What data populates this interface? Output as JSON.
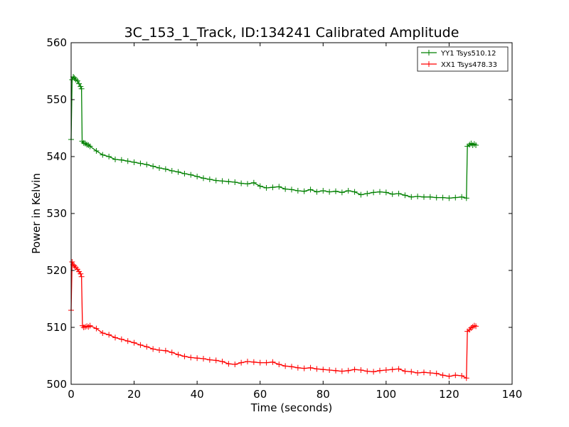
{
  "chart_data": {
    "type": "line",
    "title": "3C_153_1_Track, ID:134241 Calibrated Amplitude",
    "xlabel": "Time (seconds)",
    "ylabel": "Power in Kelvin",
    "xlim": [
      0,
      140
    ],
    "ylim": [
      500,
      560
    ],
    "xticks": [
      0,
      20,
      40,
      60,
      80,
      100,
      120,
      140
    ],
    "yticks": [
      500,
      510,
      520,
      530,
      540,
      550,
      560
    ],
    "grid": false,
    "legend_position": "top-right",
    "marker": "+",
    "series": [
      {
        "name": "YY1 Tsys510.12",
        "color": "#008000",
        "points": [
          [
            0.0,
            543.0
          ],
          [
            0.3,
            553.5
          ],
          [
            0.7,
            554.0
          ],
          [
            1.0,
            553.8
          ],
          [
            1.5,
            553.5
          ],
          [
            2.0,
            553.3
          ],
          [
            2.5,
            552.8
          ],
          [
            3.0,
            552.3
          ],
          [
            3.3,
            551.9
          ],
          [
            3.5,
            542.7
          ],
          [
            4.0,
            542.4
          ],
          [
            4.5,
            542.3
          ],
          [
            5.0,
            542.1
          ],
          [
            5.5,
            542.0
          ],
          [
            6.0,
            541.8
          ],
          [
            8,
            541.0
          ],
          [
            10,
            540.3
          ],
          [
            12,
            540.0
          ],
          [
            14,
            539.5
          ],
          [
            16,
            539.4
          ],
          [
            18,
            539.2
          ],
          [
            20,
            539.0
          ],
          [
            22,
            538.8
          ],
          [
            24,
            538.6
          ],
          [
            26,
            538.3
          ],
          [
            28,
            538.0
          ],
          [
            30,
            537.8
          ],
          [
            32,
            537.5
          ],
          [
            34,
            537.3
          ],
          [
            36,
            537.0
          ],
          [
            38,
            536.8
          ],
          [
            40,
            536.5
          ],
          [
            42,
            536.2
          ],
          [
            44,
            536.0
          ],
          [
            46,
            535.8
          ],
          [
            48,
            535.7
          ],
          [
            50,
            535.6
          ],
          [
            52,
            535.5
          ],
          [
            54,
            535.3
          ],
          [
            56,
            535.2
          ],
          [
            58,
            535.4
          ],
          [
            60,
            534.8
          ],
          [
            62,
            534.5
          ],
          [
            64,
            534.6
          ],
          [
            66,
            534.7
          ],
          [
            68,
            534.3
          ],
          [
            70,
            534.2
          ],
          [
            72,
            534.0
          ],
          [
            74,
            533.9
          ],
          [
            76,
            534.2
          ],
          [
            78,
            533.8
          ],
          [
            80,
            534.0
          ],
          [
            82,
            533.8
          ],
          [
            84,
            533.9
          ],
          [
            86,
            533.7
          ],
          [
            88,
            534.0
          ],
          [
            90,
            533.8
          ],
          [
            92,
            533.3
          ],
          [
            94,
            533.5
          ],
          [
            96,
            533.7
          ],
          [
            98,
            533.8
          ],
          [
            100,
            533.7
          ],
          [
            102,
            533.4
          ],
          [
            104,
            533.5
          ],
          [
            106,
            533.2
          ],
          [
            108,
            532.9
          ],
          [
            110,
            533.0
          ],
          [
            112,
            532.9
          ],
          [
            114,
            532.9
          ],
          [
            116,
            532.8
          ],
          [
            118,
            532.8
          ],
          [
            120,
            532.7
          ],
          [
            122,
            532.8
          ],
          [
            124,
            532.9
          ],
          [
            125.5,
            532.7
          ],
          [
            125.8,
            541.8
          ],
          [
            126.5,
            542.1
          ],
          [
            127.0,
            542.3
          ],
          [
            127.5,
            542.0
          ],
          [
            128.0,
            542.2
          ],
          [
            128.5,
            542.0
          ]
        ]
      },
      {
        "name": "XX1 Tsys478.33",
        "color": "#ff0000",
        "points": [
          [
            0.0,
            513.0
          ],
          [
            0.3,
            521.5
          ],
          [
            0.7,
            521.0
          ],
          [
            1.0,
            520.8
          ],
          [
            1.5,
            520.5
          ],
          [
            2.0,
            520.2
          ],
          [
            2.5,
            519.8
          ],
          [
            3.0,
            519.4
          ],
          [
            3.3,
            518.9
          ],
          [
            3.6,
            510.3
          ],
          [
            4.0,
            510.0
          ],
          [
            4.5,
            510.1
          ],
          [
            5.0,
            510.2
          ],
          [
            5.5,
            510.1
          ],
          [
            6.0,
            510.3
          ],
          [
            8,
            509.8
          ],
          [
            10,
            509.0
          ],
          [
            12,
            508.7
          ],
          [
            14,
            508.2
          ],
          [
            16,
            507.9
          ],
          [
            18,
            507.6
          ],
          [
            20,
            507.3
          ],
          [
            22,
            506.9
          ],
          [
            24,
            506.6
          ],
          [
            26,
            506.2
          ],
          [
            28,
            506.0
          ],
          [
            30,
            505.9
          ],
          [
            32,
            505.6
          ],
          [
            34,
            505.2
          ],
          [
            36,
            504.9
          ],
          [
            38,
            504.7
          ],
          [
            40,
            504.6
          ],
          [
            42,
            504.5
          ],
          [
            44,
            504.3
          ],
          [
            46,
            504.2
          ],
          [
            48,
            504.0
          ],
          [
            50,
            503.6
          ],
          [
            52,
            503.5
          ],
          [
            54,
            503.8
          ],
          [
            56,
            504.0
          ],
          [
            58,
            503.9
          ],
          [
            60,
            503.8
          ],
          [
            62,
            503.8
          ],
          [
            64,
            503.9
          ],
          [
            66,
            503.5
          ],
          [
            68,
            503.2
          ],
          [
            70,
            503.1
          ],
          [
            72,
            502.9
          ],
          [
            74,
            502.8
          ],
          [
            76,
            502.9
          ],
          [
            78,
            502.7
          ],
          [
            80,
            502.6
          ],
          [
            82,
            502.5
          ],
          [
            84,
            502.4
          ],
          [
            86,
            502.3
          ],
          [
            88,
            502.4
          ],
          [
            90,
            502.6
          ],
          [
            92,
            502.5
          ],
          [
            94,
            502.3
          ],
          [
            96,
            502.2
          ],
          [
            98,
            502.4
          ],
          [
            100,
            502.5
          ],
          [
            102,
            502.6
          ],
          [
            104,
            502.7
          ],
          [
            106,
            502.3
          ],
          [
            108,
            502.2
          ],
          [
            110,
            502.0
          ],
          [
            112,
            502.1
          ],
          [
            114,
            502.0
          ],
          [
            116,
            501.9
          ],
          [
            118,
            501.6
          ],
          [
            120,
            501.4
          ],
          [
            122,
            501.6
          ],
          [
            124,
            501.5
          ],
          [
            125.5,
            501.1
          ],
          [
            125.8,
            509.3
          ],
          [
            126.5,
            509.6
          ],
          [
            127.0,
            509.9
          ],
          [
            127.5,
            510.1
          ],
          [
            128.0,
            510.3
          ],
          [
            128.5,
            510.2
          ]
        ]
      }
    ]
  }
}
